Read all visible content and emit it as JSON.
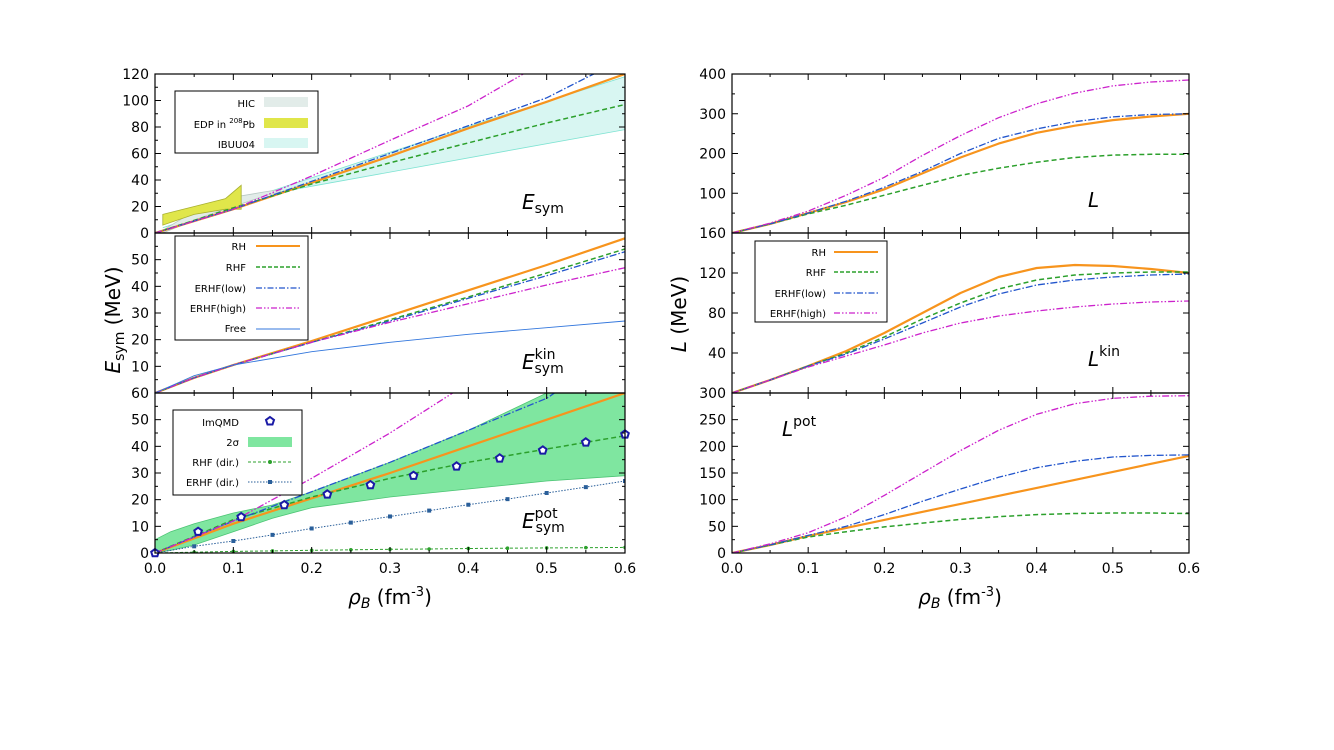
{
  "figure": {
    "left_ylabel": "E_sym (MeV)",
    "right_ylabel": "L (MeV)",
    "left_xlabel": "ρ_B (fm⁻³)",
    "right_xlabel": "ρ_B (fm⁻³)"
  },
  "colors": {
    "RH": "#f7941d",
    "RHF": "#2ca02c",
    "ERHF_low": "#2255cc",
    "ERHF_high": "#cc22cc",
    "Free": "#3377dd",
    "HIC": "#e2ece9",
    "EDP": "#e0e64a",
    "IBUU04": "#d8f6f2",
    "two_sigma": "#7fe6a0",
    "ImQMD": "#1a1aa6"
  },
  "chart_data": [
    {
      "id": "Esym",
      "type": "line",
      "panel_label": "E_sym",
      "xlim": [
        0,
        0.6
      ],
      "ylim": [
        0,
        120
      ],
      "yticks": [
        0,
        20,
        40,
        60,
        80,
        100,
        120
      ],
      "series": [
        {
          "name": "RH",
          "x": [
            0,
            0.1,
            0.2,
            0.3,
            0.4,
            0.5,
            0.6
          ],
          "values": [
            0,
            18,
            38,
            58,
            79,
            99,
            120
          ]
        },
        {
          "name": "RHF",
          "x": [
            0,
            0.1,
            0.2,
            0.3,
            0.4,
            0.5,
            0.6
          ],
          "values": [
            0,
            19,
            37,
            53,
            68,
            83,
            97
          ]
        },
        {
          "name": "ERHF(low)",
          "x": [
            0,
            0.1,
            0.2,
            0.3,
            0.4,
            0.5,
            0.56
          ],
          "values": [
            0,
            18,
            39,
            60,
            81,
            102,
            120
          ]
        },
        {
          "name": "ERHF(high)",
          "x": [
            0,
            0.1,
            0.2,
            0.3,
            0.4,
            0.47
          ],
          "values": [
            0,
            18,
            43,
            70,
            96,
            120
          ]
        }
      ],
      "bands": [
        {
          "name": "IBUU04",
          "x": [
            0.01,
            0.15,
            0.3,
            0.45,
            0.6
          ],
          "lower": [
            4,
            30,
            46,
            62,
            78
          ],
          "upper": [
            4,
            32,
            61,
            90,
            118
          ]
        },
        {
          "name": "HIC",
          "x": [
            0.01,
            0.06,
            0.1,
            0.14,
            0.16
          ],
          "lower": [
            0,
            12,
            20,
            28,
            31
          ],
          "upper": [
            2,
            20,
            27,
            31,
            33
          ]
        },
        {
          "name": "EDP in 208Pb",
          "x": [
            0.01,
            0.05,
            0.09,
            0.11
          ],
          "lower": [
            6,
            14,
            18,
            18
          ],
          "upper": [
            14,
            20,
            26,
            36
          ]
        }
      ],
      "legend": [
        "HIC",
        "EDP in 208Pb",
        "IBUU04"
      ]
    },
    {
      "id": "Esym_kin",
      "type": "line",
      "panel_label": "E_sym^kin",
      "xlim": [
        0,
        0.6
      ],
      "ylim": [
        0,
        60
      ],
      "yticks": [
        10,
        20,
        30,
        40,
        50
      ],
      "series": [
        {
          "name": "RH",
          "x": [
            0,
            0.05,
            0.1,
            0.2,
            0.3,
            0.4,
            0.5,
            0.6
          ],
          "values": [
            0,
            5.7,
            10.5,
            19.5,
            29,
            38.5,
            48,
            58
          ]
        },
        {
          "name": "RHF",
          "x": [
            0,
            0.05,
            0.1,
            0.2,
            0.3,
            0.4,
            0.5,
            0.6
          ],
          "values": [
            0,
            5.7,
            10.5,
            19,
            27.5,
            36,
            45,
            54
          ]
        },
        {
          "name": "ERHF(low)",
          "x": [
            0,
            0.05,
            0.1,
            0.2,
            0.3,
            0.4,
            0.5,
            0.6
          ],
          "values": [
            0,
            5.7,
            10.5,
            19,
            27,
            35.5,
            44,
            53
          ]
        },
        {
          "name": "ERHF(high)",
          "x": [
            0,
            0.05,
            0.1,
            0.2,
            0.3,
            0.4,
            0.5,
            0.6
          ],
          "values": [
            0,
            5.7,
            10.5,
            19,
            26.5,
            33.5,
            40.5,
            47
          ]
        },
        {
          "name": "Free",
          "x": [
            0,
            0.05,
            0.1,
            0.2,
            0.3,
            0.4,
            0.5,
            0.6
          ],
          "values": [
            0,
            6.5,
            10.5,
            15.5,
            19,
            22,
            24.5,
            27
          ]
        }
      ],
      "legend": [
        "RH",
        "RHF",
        "ERHF(low)",
        "ERHF(high)",
        "Free"
      ]
    },
    {
      "id": "Esym_pot",
      "type": "line",
      "panel_label": "E_sym^pot",
      "xlim": [
        0,
        0.6
      ],
      "ylim": [
        0,
        60
      ],
      "xticks": [
        0.0,
        0.1,
        0.2,
        0.3,
        0.4,
        0.5,
        0.6
      ],
      "yticks": [
        0,
        10,
        20,
        30,
        40,
        50,
        60
      ],
      "series": [
        {
          "name": "RH",
          "x": [
            0,
            0.1,
            0.2,
            0.3,
            0.4,
            0.5,
            0.6
          ],
          "values": [
            0,
            11,
            20.5,
            30,
            40,
            50,
            60
          ]
        },
        {
          "name": "RHF",
          "x": [
            0,
            0.1,
            0.2,
            0.3,
            0.4,
            0.5,
            0.6
          ],
          "values": [
            0,
            12.5,
            21,
            28,
            34,
            39,
            44
          ]
        },
        {
          "name": "ERHF(low)",
          "x": [
            0,
            0.1,
            0.2,
            0.3,
            0.4,
            0.5,
            0.51
          ],
          "values": [
            0,
            12,
            23,
            34,
            46,
            58,
            60
          ]
        },
        {
          "name": "ERHF(high)",
          "x": [
            0,
            0.1,
            0.2,
            0.3,
            0.38
          ],
          "values": [
            0,
            12,
            28,
            45,
            60
          ]
        },
        {
          "name": "RHF (dir.)",
          "x": [
            0,
            0.05,
            0.1,
            0.15,
            0.2,
            0.25,
            0.3,
            0.35,
            0.4,
            0.45,
            0.5,
            0.55,
            0.6
          ],
          "values": [
            0,
            0.3,
            0.6,
            0.8,
            1.0,
            1.2,
            1.4,
            1.5,
            1.7,
            1.8,
            1.9,
            2.0,
            2.1
          ]
        },
        {
          "name": "ERHF (dir.)",
          "x": [
            0,
            0.05,
            0.1,
            0.15,
            0.2,
            0.25,
            0.3,
            0.35,
            0.4,
            0.45,
            0.5,
            0.55,
            0.6
          ],
          "values": [
            0,
            2.5,
            4.5,
            6.8,
            9.2,
            11.4,
            13.7,
            15.9,
            18.1,
            20.2,
            22.5,
            24.7,
            27
          ]
        }
      ],
      "bands": [
        {
          "name": "2σ",
          "x": [
            0,
            0.02,
            0.05,
            0.1,
            0.15,
            0.2,
            0.3,
            0.4,
            0.5,
            0.6
          ],
          "lower": [
            0,
            1,
            3,
            8,
            13,
            17,
            21,
            24,
            27,
            29
          ],
          "upper": [
            5,
            8,
            11,
            15,
            18,
            23,
            34,
            46,
            60,
            60
          ]
        }
      ],
      "points": {
        "name": "ImQMD",
        "x": [
          0.0,
          0.055,
          0.11,
          0.165,
          0.22,
          0.275,
          0.33,
          0.385,
          0.44,
          0.495,
          0.55,
          0.6
        ],
        "values": [
          0,
          8,
          13.5,
          18,
          22,
          25.5,
          29,
          32.5,
          35.5,
          38.5,
          41.5,
          44.5
        ]
      },
      "legend": [
        "ImQMD",
        "2σ",
        "RHF (dir.)",
        "ERHF (dir.)"
      ]
    },
    {
      "id": "L",
      "type": "line",
      "panel_label": "L",
      "xlim": [
        0,
        0.6
      ],
      "ylim": [
        0,
        400
      ],
      "yticks": [
        100,
        200,
        300,
        400
      ],
      "series": [
        {
          "name": "RH",
          "x": [
            0,
            0.05,
            0.1,
            0.15,
            0.2,
            0.25,
            0.3,
            0.35,
            0.4,
            0.45,
            0.5,
            0.55,
            0.6
          ],
          "values": [
            0,
            23,
            50,
            78,
            110,
            150,
            190,
            225,
            252,
            270,
            284,
            293,
            300
          ]
        },
        {
          "name": "RHF",
          "x": [
            0,
            0.05,
            0.1,
            0.15,
            0.2,
            0.25,
            0.3,
            0.35,
            0.4,
            0.45,
            0.5,
            0.55,
            0.6
          ],
          "values": [
            0,
            23,
            48,
            70,
            95,
            120,
            145,
            163,
            178,
            190,
            196,
            198,
            198
          ]
        },
        {
          "name": "ERHF(low)",
          "x": [
            0,
            0.05,
            0.1,
            0.15,
            0.2,
            0.25,
            0.3,
            0.35,
            0.4,
            0.45,
            0.5,
            0.55,
            0.6
          ],
          "values": [
            0,
            23,
            50,
            80,
            115,
            155,
            200,
            238,
            262,
            280,
            292,
            298,
            300
          ]
        },
        {
          "name": "ERHF(high)",
          "x": [
            0,
            0.05,
            0.1,
            0.15,
            0.2,
            0.25,
            0.3,
            0.35,
            0.4,
            0.45,
            0.5,
            0.55,
            0.6
          ],
          "values": [
            0,
            25,
            55,
            95,
            140,
            195,
            245,
            290,
            325,
            352,
            370,
            380,
            385
          ]
        }
      ]
    },
    {
      "id": "L_kin",
      "type": "line",
      "panel_label": "L^kin",
      "xlim": [
        0,
        0.6
      ],
      "ylim": [
        0,
        160
      ],
      "yticks": [
        40,
        80,
        120,
        160
      ],
      "series": [
        {
          "name": "RH",
          "x": [
            0,
            0.05,
            0.1,
            0.15,
            0.2,
            0.25,
            0.3,
            0.35,
            0.4,
            0.45,
            0.5,
            0.55,
            0.6
          ],
          "values": [
            0,
            13,
            27,
            42,
            60,
            80,
            100,
            116,
            125,
            128,
            127,
            124,
            120
          ]
        },
        {
          "name": "RHF",
          "x": [
            0,
            0.05,
            0.1,
            0.15,
            0.2,
            0.25,
            0.3,
            0.35,
            0.4,
            0.45,
            0.5,
            0.55,
            0.6
          ],
          "values": [
            0,
            13,
            27,
            40,
            56,
            74,
            90,
            104,
            113,
            118,
            120,
            121,
            121
          ]
        },
        {
          "name": "ERHF(low)",
          "x": [
            0,
            0.05,
            0.1,
            0.15,
            0.2,
            0.25,
            0.3,
            0.35,
            0.4,
            0.45,
            0.5,
            0.55,
            0.6
          ],
          "values": [
            0,
            13,
            27,
            39,
            54,
            70,
            86,
            99,
            108,
            113,
            116,
            118,
            119
          ]
        },
        {
          "name": "ERHF(high)",
          "x": [
            0,
            0.05,
            0.1,
            0.15,
            0.2,
            0.25,
            0.3,
            0.35,
            0.4,
            0.45,
            0.5,
            0.55,
            0.6
          ],
          "values": [
            0,
            13,
            26,
            37,
            48,
            60,
            70,
            77,
            82,
            86,
            89,
            91,
            92
          ]
        }
      ],
      "legend": [
        "RH",
        "RHF",
        "ERHF(low)",
        "ERHF(high)"
      ]
    },
    {
      "id": "L_pot",
      "type": "line",
      "panel_label": "L^pot",
      "xlim": [
        0,
        0.6
      ],
      "ylim": [
        0,
        300
      ],
      "xticks": [
        0.0,
        0.1,
        0.2,
        0.3,
        0.4,
        0.5,
        0.6
      ],
      "yticks": [
        0,
        50,
        100,
        150,
        200,
        250,
        300
      ],
      "series": [
        {
          "name": "RH",
          "x": [
            0,
            0.05,
            0.1,
            0.2,
            0.3,
            0.4,
            0.5,
            0.6
          ],
          "values": [
            0,
            15,
            32,
            62,
            92,
            122,
            152,
            182
          ]
        },
        {
          "name": "RHF",
          "x": [
            0,
            0.05,
            0.1,
            0.15,
            0.2,
            0.25,
            0.3,
            0.35,
            0.4,
            0.45,
            0.5,
            0.55,
            0.6
          ],
          "values": [
            0,
            15,
            30,
            40,
            49,
            56,
            63,
            68,
            72,
            74,
            75,
            75,
            74
          ]
        },
        {
          "name": "ERHF(low)",
          "x": [
            0,
            0.05,
            0.1,
            0.15,
            0.2,
            0.25,
            0.3,
            0.35,
            0.4,
            0.45,
            0.5,
            0.55,
            0.6
          ],
          "values": [
            0,
            15,
            33,
            50,
            72,
            97,
            120,
            142,
            160,
            172,
            180,
            183,
            184
          ]
        },
        {
          "name": "ERHF(high)",
          "x": [
            0,
            0.05,
            0.1,
            0.15,
            0.2,
            0.25,
            0.3,
            0.35,
            0.4,
            0.45,
            0.5,
            0.55,
            0.6
          ],
          "values": [
            0,
            17,
            38,
            68,
            108,
            150,
            192,
            230,
            260,
            280,
            290,
            294,
            295
          ]
        }
      ]
    }
  ]
}
